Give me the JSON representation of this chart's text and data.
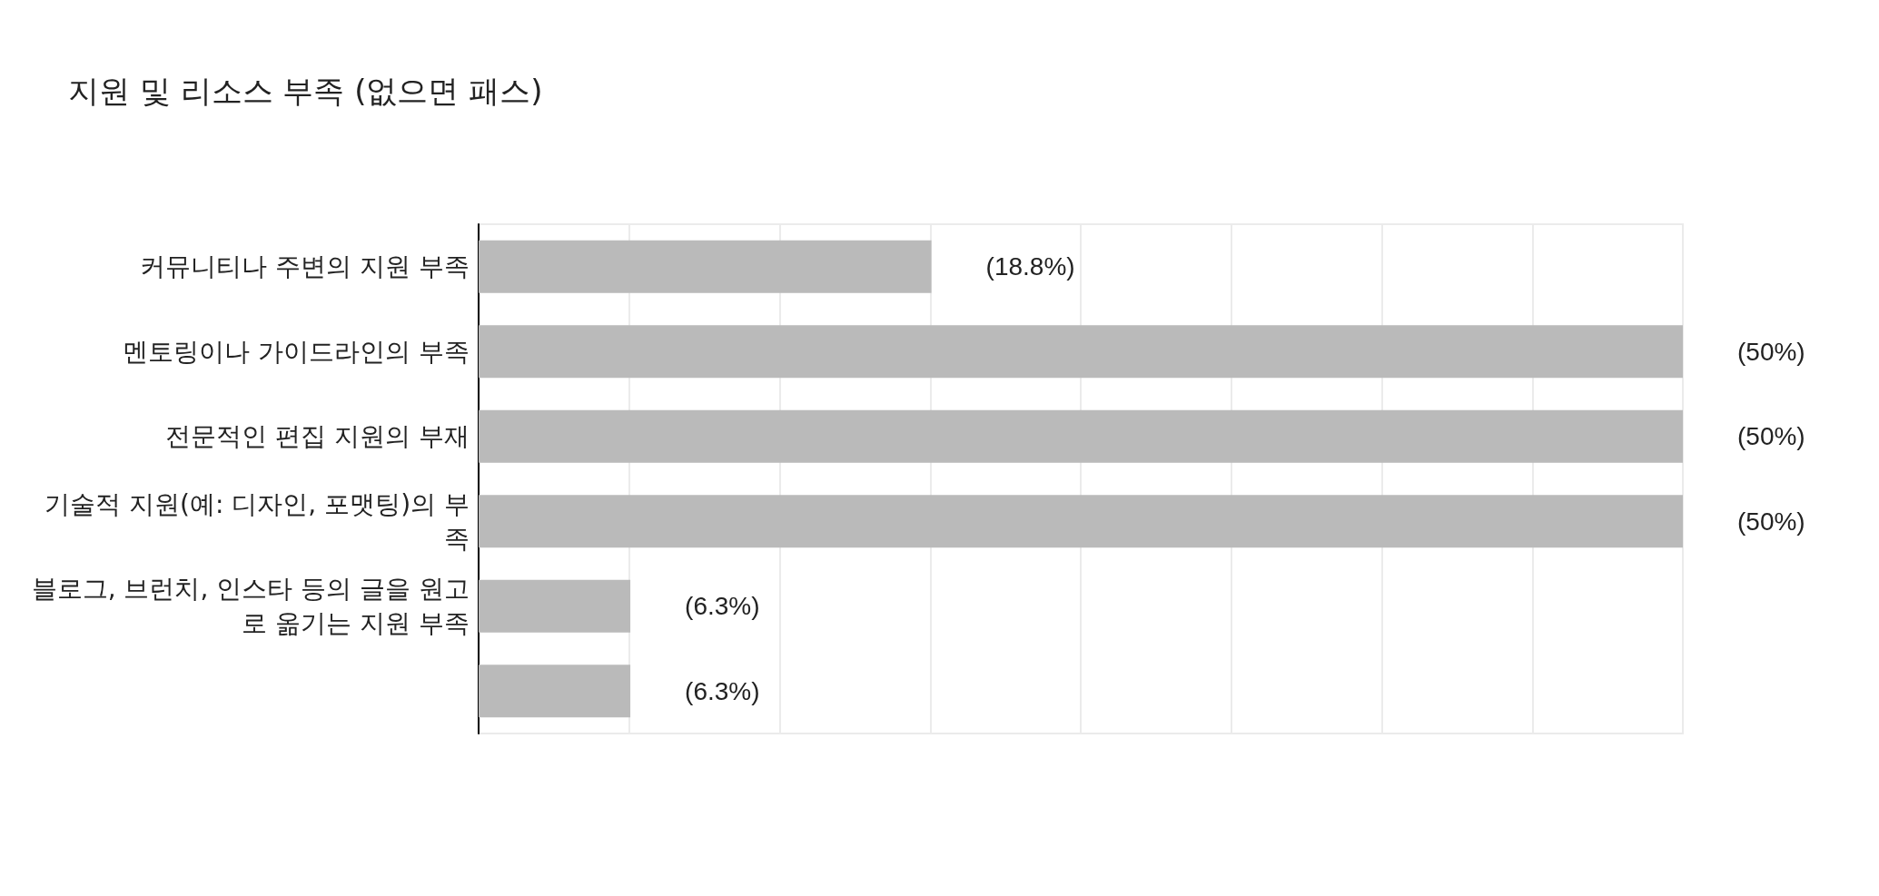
{
  "chart_data": {
    "type": "bar",
    "orientation": "horizontal",
    "title": "지원 및 리소스 부족 (없으면 패스)",
    "categories": [
      "커뮤니티나 주변의 지원 부족",
      "멘토링이나 가이드라인의 부족",
      "전문적인 편집 지원의 부재",
      "기술적 지원(예: 디자인, 포맷팅)의 부족",
      "블로그, 브런치, 인스타 등의 글을 원고로 옮기는 지원 부족",
      null
    ],
    "values": [
      18.8,
      50,
      50,
      50,
      6.3,
      6.3
    ],
    "value_labels": [
      "(18.8%)",
      "(50%)",
      "(50%)",
      "(50%)",
      "(6.3%)",
      "(6.3%)"
    ],
    "color": "#bababa",
    "xlim": [
      0,
      50
    ],
    "xticks": [
      {
        "value": 0,
        "label": null
      },
      {
        "value": 6.25,
        "label": null
      },
      {
        "value": 12.5,
        "label": null
      },
      {
        "value": 18.75,
        "label": null
      },
      {
        "value": 25,
        "label": null
      },
      {
        "value": 31.25,
        "label": null
      },
      {
        "value": 37.5,
        "label": null
      },
      {
        "value": 43.75,
        "label": null
      },
      {
        "value": 50,
        "label": null
      }
    ],
    "grid": "x",
    "tick_labels": "y"
  }
}
